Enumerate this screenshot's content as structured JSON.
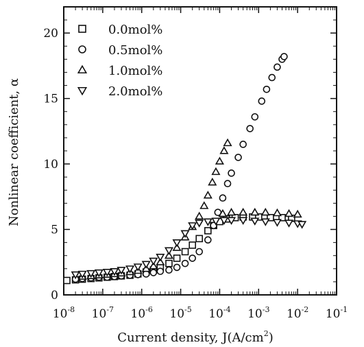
{
  "chart_data": {
    "type": "scatter",
    "xlabel": {
      "text": "Current density, J(A/cm",
      "sup": "2",
      "suffix": ")"
    },
    "ylabel": "Nonlinear coefficient, α",
    "x_scale": "log",
    "xlim": [
      1e-08,
      0.1
    ],
    "ylim": [
      0,
      22
    ],
    "x_ticks": [
      {
        "base": "10",
        "exp": "-8"
      },
      {
        "base": "10",
        "exp": "-7"
      },
      {
        "base": "10",
        "exp": "-6"
      },
      {
        "base": "10",
        "exp": "-5"
      },
      {
        "base": "10",
        "exp": "-4"
      },
      {
        "base": "10",
        "exp": "-3"
      },
      {
        "base": "10",
        "exp": "-2"
      },
      {
        "base": "10",
        "exp": "-1"
      }
    ],
    "y_ticks": [
      "0",
      "5",
      "10",
      "15",
      "20"
    ],
    "legend_position": "top-left",
    "series": [
      {
        "name": "0.0mol%",
        "marker": "square",
        "points": [
          [
            1.2e-08,
            1.1
          ],
          [
            2e-08,
            1.15
          ],
          [
            3e-08,
            1.2
          ],
          [
            5e-08,
            1.25
          ],
          [
            8e-08,
            1.3
          ],
          [
            1.3e-07,
            1.35
          ],
          [
            2e-07,
            1.4
          ],
          [
            3e-07,
            1.45
          ],
          [
            5e-07,
            1.5
          ],
          [
            8e-07,
            1.6
          ],
          [
            1.3e-06,
            1.75
          ],
          [
            2e-06,
            1.9
          ],
          [
            3e-06,
            2.1
          ],
          [
            5e-06,
            2.4
          ],
          [
            8e-06,
            2.8
          ],
          [
            1.3e-05,
            3.3
          ],
          [
            2e-05,
            3.8
          ],
          [
            3e-05,
            4.3
          ],
          [
            5e-05,
            4.9
          ],
          [
            7e-05,
            5.3
          ],
          [
            0.0001,
            5.6
          ],
          [
            0.00015,
            5.8
          ],
          [
            0.00025,
            5.9
          ],
          [
            0.0004,
            5.95
          ],
          [
            0.0007,
            5.95
          ],
          [
            0.001,
            5.95
          ],
          [
            0.002,
            5.9
          ],
          [
            0.004,
            5.9
          ],
          [
            0.007,
            5.85
          ]
        ]
      },
      {
        "name": "0.5mol%",
        "marker": "circle",
        "points": [
          [
            2e-08,
            1.2
          ],
          [
            3e-08,
            1.25
          ],
          [
            5e-08,
            1.3
          ],
          [
            8e-08,
            1.35
          ],
          [
            1.3e-07,
            1.35
          ],
          [
            2e-07,
            1.4
          ],
          [
            3e-07,
            1.45
          ],
          [
            5e-07,
            1.5
          ],
          [
            8e-07,
            1.55
          ],
          [
            1.3e-06,
            1.6
          ],
          [
            2e-06,
            1.7
          ],
          [
            3e-06,
            1.8
          ],
          [
            5e-06,
            1.9
          ],
          [
            8e-06,
            2.1
          ],
          [
            1.3e-05,
            2.4
          ],
          [
            2e-05,
            2.8
          ],
          [
            3e-05,
            3.3
          ],
          [
            5e-05,
            4.2
          ],
          [
            7e-05,
            5.3
          ],
          [
            9e-05,
            6.3
          ],
          [
            0.00012,
            7.4
          ],
          [
            0.00016,
            8.5
          ],
          [
            0.0002,
            9.3
          ],
          [
            0.0003,
            10.5
          ],
          [
            0.0004,
            11.5
          ],
          [
            0.0006,
            12.7
          ],
          [
            0.0008,
            13.6
          ],
          [
            0.0012,
            14.8
          ],
          [
            0.0016,
            15.7
          ],
          [
            0.0022,
            16.6
          ],
          [
            0.003,
            17.4
          ],
          [
            0.004,
            18.0
          ],
          [
            0.0045,
            18.2
          ]
        ]
      },
      {
        "name": "1.0mol%",
        "marker": "triangle-up",
        "points": [
          [
            3e-08,
            1.4
          ],
          [
            5e-08,
            1.45
          ],
          [
            8e-08,
            1.5
          ],
          [
            1.3e-07,
            1.55
          ],
          [
            2e-07,
            1.6
          ],
          [
            3e-07,
            1.65
          ],
          [
            5e-07,
            1.75
          ],
          [
            8e-07,
            1.85
          ],
          [
            1.3e-06,
            2.0
          ],
          [
            2e-06,
            2.2
          ],
          [
            3e-06,
            2.5
          ],
          [
            5e-06,
            3.0
          ],
          [
            8e-06,
            3.6
          ],
          [
            1.3e-05,
            4.4
          ],
          [
            2e-05,
            5.2
          ],
          [
            3e-05,
            6.0
          ],
          [
            4e-05,
            6.8
          ],
          [
            5e-05,
            7.6
          ],
          [
            6.5e-05,
            8.6
          ],
          [
            8e-05,
            9.4
          ],
          [
            0.0001,
            10.2
          ],
          [
            0.00013,
            11.0
          ],
          [
            0.00016,
            11.6
          ],
          [
            0.00012,
            6.2
          ],
          [
            0.0002,
            6.3
          ],
          [
            0.0004,
            6.3
          ],
          [
            0.0008,
            6.3
          ],
          [
            0.0015,
            6.3
          ],
          [
            0.003,
            6.25
          ],
          [
            0.006,
            6.2
          ],
          [
            0.01,
            6.15
          ]
        ]
      },
      {
        "name": "2.0mol%",
        "marker": "triangle-down",
        "points": [
          [
            2e-08,
            1.55
          ],
          [
            3e-08,
            1.6
          ],
          [
            5e-08,
            1.65
          ],
          [
            8e-08,
            1.7
          ],
          [
            1.3e-07,
            1.75
          ],
          [
            2e-07,
            1.8
          ],
          [
            3e-07,
            1.9
          ],
          [
            5e-07,
            2.0
          ],
          [
            8e-07,
            2.15
          ],
          [
            1.3e-06,
            2.35
          ],
          [
            2e-06,
            2.6
          ],
          [
            3e-06,
            2.9
          ],
          [
            5e-06,
            3.4
          ],
          [
            8e-06,
            4.0
          ],
          [
            1.3e-05,
            4.7
          ],
          [
            2e-05,
            5.3
          ],
          [
            3e-05,
            5.5
          ],
          [
            5e-05,
            5.6
          ],
          [
            8e-05,
            5.65
          ],
          [
            0.00013,
            5.7
          ],
          [
            0.0002,
            5.7
          ],
          [
            0.0004,
            5.7
          ],
          [
            0.0008,
            5.65
          ],
          [
            0.0015,
            5.6
          ],
          [
            0.003,
            5.55
          ],
          [
            0.006,
            5.5
          ],
          [
            0.01,
            5.45
          ],
          [
            0.013,
            5.4
          ]
        ]
      }
    ]
  }
}
